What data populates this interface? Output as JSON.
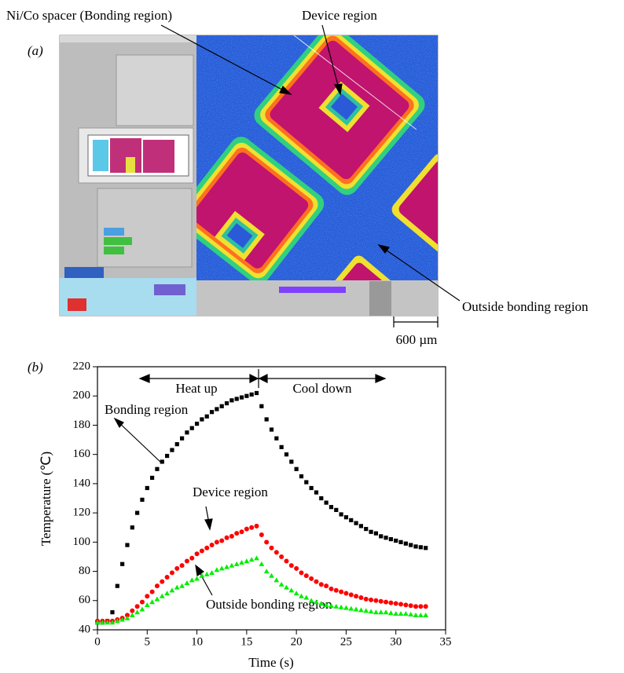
{
  "panel_a": {
    "label": "(a)",
    "annotations": [
      "Ni/Co spacer (Bonding region)",
      "Device region",
      "Outside bonding region"
    ],
    "scale_bar": "600 µm"
  },
  "chart_data": {
    "type": "scatter",
    "panel_label": "(b)",
    "x_label": "Time (s)",
    "y_label": "Temperature (℃)",
    "annotations": [
      "Heat up",
      "Cool down"
    ],
    "xlim": [
      0,
      35
    ],
    "xticks": [
      0,
      5,
      10,
      15,
      20,
      25,
      30,
      35
    ],
    "ylim": [
      40,
      220
    ],
    "yticks": [
      40,
      60,
      80,
      100,
      120,
      140,
      160,
      180,
      200,
      220
    ],
    "x": [
      0,
      0.5,
      1,
      1.5,
      2,
      2.5,
      3,
      3.5,
      4,
      4.5,
      5,
      5.5,
      6,
      6.5,
      7,
      7.5,
      8,
      8.5,
      9,
      9.5,
      10,
      10.5,
      11,
      11.5,
      12,
      12.5,
      13,
      13.5,
      14,
      14.5,
      15,
      15.5,
      16,
      16.5,
      17,
      17.5,
      18,
      18.5,
      19,
      19.5,
      20,
      20.5,
      21,
      21.5,
      22,
      22.5,
      23,
      23.5,
      24,
      24.5,
      25,
      25.5,
      26,
      26.5,
      27,
      27.5,
      28,
      28.5,
      29,
      29.5,
      30,
      30.5,
      31,
      31.5,
      32,
      32.5,
      33
    ],
    "series": [
      {
        "name": "Bonding region",
        "color": "#000000",
        "marker": "square",
        "values": [
          45,
          45,
          46,
          52,
          70,
          85,
          98,
          110,
          120,
          129,
          137,
          144,
          150,
          155,
          159,
          163,
          167,
          171,
          175,
          178,
          181,
          184,
          186,
          189,
          191,
          193,
          195,
          197,
          198,
          199,
          200,
          201,
          202,
          193,
          184,
          177,
          171,
          165,
          160,
          155,
          150,
          145,
          141,
          137,
          134,
          130,
          127,
          124,
          122,
          119,
          117,
          115,
          113,
          111,
          109,
          107,
          106,
          104,
          103,
          102,
          101,
          100,
          99,
          98,
          97,
          96.5,
          96
        ]
      },
      {
        "name": "Device region",
        "color": "#ff0000",
        "marker": "circle",
        "values": [
          46,
          46,
          46,
          46,
          47,
          48,
          50,
          53,
          56,
          59,
          63,
          66,
          70,
          73,
          76,
          79,
          82,
          84,
          87,
          89,
          92,
          94,
          96,
          98,
          100,
          101,
          103,
          104,
          106,
          107,
          109,
          110,
          111,
          105,
          100,
          96,
          93,
          90,
          87,
          84,
          82,
          79,
          77,
          75,
          73,
          71,
          70,
          68,
          67,
          66,
          65,
          64,
          63,
          62,
          61,
          60.5,
          60,
          59.5,
          59,
          58.5,
          58,
          57.5,
          57,
          56.5,
          56,
          56,
          56
        ]
      },
      {
        "name": "Outside bonding region",
        "color": "#00ee00",
        "marker": "triangle",
        "values": [
          45,
          45,
          45,
          45,
          46,
          47,
          48,
          50,
          52,
          54,
          57,
          59,
          61,
          63,
          65,
          67,
          69,
          70,
          72,
          74,
          75,
          77,
          78,
          79,
          81,
          82,
          83,
          84,
          85,
          86,
          87,
          88,
          89,
          85,
          80,
          77,
          74,
          71,
          69,
          67,
          65,
          63,
          62,
          60,
          59,
          58,
          57,
          56.5,
          56,
          55.5,
          55,
          54.5,
          54,
          53.5,
          53,
          52.5,
          52,
          52,
          52,
          51.5,
          51,
          51,
          51,
          50.5,
          50,
          50,
          50
        ]
      }
    ]
  }
}
